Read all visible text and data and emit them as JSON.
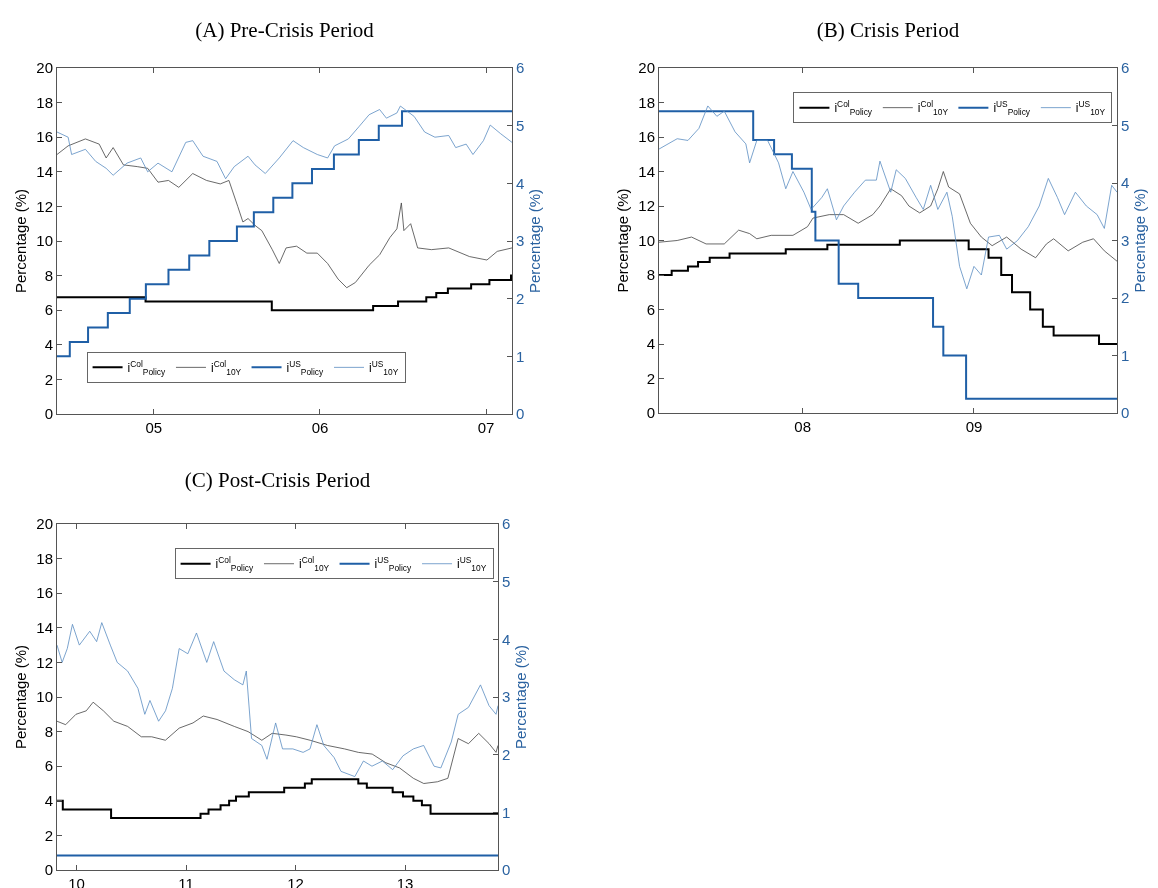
{
  "chart_data": [
    {
      "type": "line",
      "title": "(A) Pre-Crisis Period",
      "ylabel": "Percentage (%)",
      "y2label": "Percentage (%)",
      "legend": "bottom left",
      "grid": false,
      "xlim": [
        2004.417,
        2007.156
      ],
      "xticks": [
        {
          "value": 2005,
          "label": "05"
        },
        {
          "value": 2006,
          "label": "06"
        },
        {
          "value": 2007,
          "label": "07"
        }
      ],
      "ylim": [
        0,
        20
      ],
      "yticks": [
        0,
        2,
        4,
        6,
        8,
        10,
        12,
        14,
        16,
        18,
        20
      ],
      "y2lim": [
        0,
        6
      ],
      "y2ticks": [
        0,
        1,
        2,
        3,
        4,
        5,
        6
      ],
      "series": [
        {
          "name": "i$^{Col}$$_{Policy}$",
          "type": "step",
          "color": "#000000",
          "x": [
            2004.417,
            2004.95,
            2005.71,
            2006.32,
            2006.47,
            2006.64,
            2006.7,
            2006.77,
            2006.91,
            2007.02,
            2007.15,
            2007.156
          ],
          "values": [
            6.75,
            6.5,
            6.0,
            6.25,
            6.5,
            6.75,
            7.0,
            7.25,
            7.5,
            7.75,
            8.0,
            8.0
          ]
        },
        {
          "name": "i$^{Col}$$_{10Y}$",
          "type": "line",
          "color": "#444444",
          "x": [
            2004.417,
            2004.484,
            2004.588,
            2004.671,
            2004.713,
            2004.755,
            2004.817,
            2004.9,
            2004.963,
            2005.025,
            2005.088,
            2005.15,
            2005.234,
            2005.317,
            2005.4,
            2005.452,
            2005.505,
            2005.536,
            2005.567,
            2005.609,
            2005.65,
            2005.713,
            2005.755,
            2005.796,
            2005.859,
            2005.921,
            2005.984,
            2006.046,
            2006.109,
            2006.161,
            2006.213,
            2006.296,
            2006.359,
            2006.421,
            2006.463,
            2006.49,
            2006.505,
            2006.546,
            2006.588,
            2006.671,
            2006.775,
            2006.9,
            2007.005,
            2007.067,
            2007.156
          ],
          "values": [
            15.0,
            15.5,
            15.9,
            15.6,
            14.8,
            15.4,
            14.4,
            14.3,
            14.2,
            13.4,
            13.5,
            13.1,
            13.9,
            13.5,
            13.3,
            13.5,
            12.0,
            11.1,
            11.3,
            10.9,
            10.6,
            9.5,
            8.7,
            9.6,
            9.7,
            9.3,
            9.3,
            8.7,
            7.8,
            7.3,
            7.6,
            8.6,
            9.2,
            10.2,
            10.7,
            12.2,
            10.6,
            11.0,
            9.6,
            9.5,
            9.6,
            9.1,
            8.9,
            9.4,
            9.6
          ]
        },
        {
          "name": "i$^{US}$$_{Policy}$",
          "type": "step",
          "axis": "y2",
          "color": "#1f5fa6",
          "x": [
            2004.417,
            2004.494,
            2004.604,
            2004.723,
            2004.855,
            2004.952,
            2005.088,
            2005.213,
            2005.334,
            2005.5,
            2005.602,
            2005.719,
            2005.834,
            2005.952,
            2006.084,
            2006.234,
            2006.354,
            2006.494,
            2007.156
          ],
          "values": [
            1.0,
            1.25,
            1.5,
            1.75,
            2.0,
            2.25,
            2.5,
            2.75,
            3.0,
            3.25,
            3.5,
            3.75,
            4.0,
            4.25,
            4.5,
            4.75,
            5.0,
            5.25,
            5.25
          ]
        },
        {
          "name": "i$^{US}$$_{10Y}$",
          "type": "line",
          "axis": "y2",
          "color": "#5a8dc2",
          "x": [
            2004.417,
            2004.484,
            2004.505,
            2004.588,
            2004.65,
            2004.713,
            2004.755,
            2004.838,
            2004.921,
            2004.963,
            2005.025,
            2005.109,
            2005.192,
            2005.234,
            2005.296,
            2005.38,
            2005.432,
            2005.484,
            2005.567,
            2005.609,
            2005.671,
            2005.755,
            2005.838,
            2005.9,
            2005.984,
            2006.046,
            2006.088,
            2006.171,
            2006.234,
            2006.296,
            2006.359,
            2006.4,
            2006.463,
            2006.484,
            2006.567,
            2006.63,
            2006.692,
            2006.775,
            2006.817,
            2006.88,
            2006.921,
            2006.984,
            2007.025,
            2007.088,
            2007.156
          ],
          "values": [
            4.89,
            4.8,
            4.5,
            4.59,
            4.38,
            4.26,
            4.14,
            4.35,
            4.44,
            4.2,
            4.35,
            4.2,
            4.71,
            4.74,
            4.47,
            4.38,
            4.08,
            4.29,
            4.47,
            4.32,
            4.17,
            4.44,
            4.74,
            4.62,
            4.5,
            4.44,
            4.65,
            4.77,
            4.98,
            5.19,
            5.28,
            5.13,
            5.22,
            5.34,
            5.16,
            4.89,
            4.8,
            4.83,
            4.62,
            4.68,
            4.5,
            4.74,
            5.01,
            4.86,
            4.71
          ]
        }
      ]
    },
    {
      "type": "line",
      "title": "(B) Crisis Period",
      "ylabel": "Percentage (%)",
      "y2label": "Percentage (%)",
      "legend": "top right",
      "grid": false,
      "xlim": [
        2007.161,
        2009.835
      ],
      "xticks": [
        {
          "value": 2008,
          "label": "08"
        },
        {
          "value": 2009,
          "label": "09"
        }
      ],
      "ylim": [
        0,
        20
      ],
      "yticks": [
        0,
        2,
        4,
        6,
        8,
        10,
        12,
        14,
        16,
        18,
        20
      ],
      "y2lim": [
        0,
        6
      ],
      "y2ticks": [
        0,
        1,
        2,
        3,
        4,
        5,
        6
      ],
      "series": [
        {
          "name": "i$^{Col}$$_{Policy}$",
          "type": "step",
          "color": "#000000",
          "x": [
            2007.161,
            2007.235,
            2007.33,
            2007.389,
            2007.457,
            2007.573,
            2007.901,
            2008.144,
            2008.567,
            2008.969,
            2009.085,
            2009.159,
            2009.222,
            2009.328,
            2009.402,
            2009.465,
            2009.73,
            2009.835
          ],
          "values": [
            8.0,
            8.25,
            8.5,
            8.75,
            9.0,
            9.25,
            9.5,
            9.75,
            10.0,
            9.5,
            9.0,
            8.0,
            7.0,
            6.0,
            5.0,
            4.5,
            4.0,
            4.0
          ]
        },
        {
          "name": "i$^{Col}$$_{10Y}$",
          "type": "line",
          "color": "#444444",
          "x": [
            2007.161,
            2007.267,
            2007.351,
            2007.436,
            2007.542,
            2007.626,
            2007.69,
            2007.732,
            2007.816,
            2007.943,
            2008.028,
            2008.06,
            2008.155,
            2008.239,
            2008.324,
            2008.409,
            2008.451,
            2008.514,
            2008.577,
            2008.62,
            2008.683,
            2008.747,
            2008.789,
            2008.821,
            2008.852,
            2008.916,
            2008.979,
            2009.043,
            2009.106,
            2009.191,
            2009.275,
            2009.36,
            2009.423,
            2009.465,
            2009.55,
            2009.635,
            2009.698,
            2009.761,
            2009.835
          ],
          "values": [
            9.9,
            10.0,
            10.2,
            9.8,
            9.8,
            10.6,
            10.4,
            10.1,
            10.3,
            10.3,
            10.8,
            11.3,
            11.5,
            11.5,
            11.0,
            11.5,
            12.0,
            13.0,
            12.6,
            12.0,
            11.6,
            12.0,
            13.0,
            14.0,
            13.1,
            12.7,
            11.0,
            10.2,
            9.7,
            10.2,
            9.5,
            9.0,
            9.8,
            10.1,
            9.4,
            9.9,
            10.1,
            9.4,
            8.8
          ]
        },
        {
          "name": "i$^{US}$$_{Policy}$",
          "type": "step",
          "axis": "y2",
          "color": "#1f5fa6",
          "x": [
            2007.161,
            2007.711,
            2007.833,
            2007.937,
            2008.053,
            2008.074,
            2008.21,
            2008.324,
            2008.761,
            2008.821,
            2008.954,
            2009.835
          ],
          "values": [
            5.25,
            4.75,
            4.5,
            4.25,
            3.5,
            3.0,
            2.25,
            2.0,
            1.5,
            1.0,
            0.25,
            0.25
          ]
        },
        {
          "name": "i$^{US}$$_{10Y}$",
          "type": "line",
          "axis": "y2",
          "color": "#5a8dc2",
          "x": [
            2007.161,
            2007.214,
            2007.267,
            2007.33,
            2007.394,
            2007.446,
            2007.499,
            2007.542,
            2007.605,
            2007.668,
            2007.69,
            2007.732,
            2007.795,
            2007.859,
            2007.901,
            2007.943,
            2008.007,
            2008.049,
            2008.112,
            2008.144,
            2008.197,
            2008.239,
            2008.303,
            2008.366,
            2008.43,
            2008.451,
            2008.514,
            2008.546,
            2008.599,
            2008.662,
            2008.704,
            2008.747,
            2008.789,
            2008.842,
            2008.873,
            2008.916,
            2008.958,
            2009.0,
            2009.043,
            2009.085,
            2009.148,
            2009.191,
            2009.254,
            2009.317,
            2009.381,
            2009.434,
            2009.487,
            2009.529,
            2009.592,
            2009.656,
            2009.719,
            2009.761,
            2009.804,
            2009.835
          ],
          "values": [
            4.59,
            4.68,
            4.77,
            4.74,
            4.95,
            5.34,
            5.16,
            5.25,
            4.89,
            4.68,
            4.35,
            4.74,
            4.74,
            4.35,
            3.9,
            4.2,
            3.84,
            3.54,
            3.75,
            3.9,
            3.36,
            3.6,
            3.84,
            4.05,
            4.05,
            4.38,
            3.84,
            4.23,
            4.08,
            3.75,
            3.54,
            3.96,
            3.54,
            3.84,
            3.42,
            2.55,
            2.16,
            2.55,
            2.4,
            3.06,
            3.09,
            2.85,
            3.0,
            3.24,
            3.6,
            4.08,
            3.75,
            3.45,
            3.84,
            3.6,
            3.45,
            3.21,
            3.96,
            3.84
          ]
        }
      ]
    },
    {
      "type": "line",
      "title": "(C) Post-Crisis Period",
      "ylabel": "Percentage (%)",
      "y2label": "Percentage (%)",
      "legend": "top right",
      "grid": false,
      "xlim": [
        2009.821,
        2013.849
      ],
      "xticks": [
        {
          "value": 2010,
          "label": "10"
        },
        {
          "value": 2011,
          "label": "11"
        },
        {
          "value": 2012,
          "label": "12"
        },
        {
          "value": 2013,
          "label": "13"
        }
      ],
      "ylim": [
        0,
        20
      ],
      "yticks": [
        0,
        2,
        4,
        6,
        8,
        10,
        12,
        14,
        16,
        18,
        20
      ],
      "y2lim": [
        0,
        6
      ],
      "y2ticks": [
        0,
        1,
        2,
        3,
        4,
        5,
        6
      ],
      "series": [
        {
          "name": "i$^{Col}$$_{Policy}$",
          "type": "step",
          "color": "#000000",
          "x": [
            2009.821,
            2009.874,
            2010.315,
            2011.132,
            2011.205,
            2011.315,
            2011.393,
            2011.456,
            2011.573,
            2011.896,
            2012.085,
            2012.148,
            2012.573,
            2012.651,
            2012.887,
            2012.981,
            2013.076,
            2013.154,
            2013.233,
            2013.849
          ],
          "values": [
            4.0,
            3.5,
            3.0,
            3.25,
            3.5,
            3.75,
            4.0,
            4.25,
            4.5,
            4.75,
            5.0,
            5.25,
            5.0,
            4.75,
            4.5,
            4.25,
            4.0,
            3.75,
            3.25,
            3.25
          ]
        },
        {
          "name": "i$^{Col}$$_{10Y}$",
          "type": "line",
          "color": "#444444",
          "x": [
            2009.821,
            2009.9,
            2009.994,
            2010.088,
            2010.151,
            2010.245,
            2010.34,
            2010.466,
            2010.591,
            2010.686,
            2010.811,
            2010.937,
            2011.063,
            2011.157,
            2011.283,
            2011.44,
            2011.566,
            2011.692,
            2011.786,
            2011.912,
            2012.007,
            2012.133,
            2012.29,
            2012.447,
            2012.573,
            2012.7,
            2012.824,
            2012.95,
            2013.076,
            2013.171,
            2013.296,
            2013.391,
            2013.485,
            2013.579,
            2013.673,
            2013.768,
            2013.831,
            2013.849
          ],
          "values": [
            8.6,
            8.4,
            9.0,
            9.2,
            9.7,
            9.2,
            8.6,
            8.3,
            7.7,
            7.7,
            7.5,
            8.2,
            8.5,
            8.9,
            8.7,
            8.3,
            8.0,
            7.5,
            7.9,
            7.8,
            7.7,
            7.5,
            7.2,
            7.0,
            6.8,
            6.7,
            6.2,
            5.9,
            5.3,
            5.0,
            5.1,
            5.3,
            7.6,
            7.3,
            7.9,
            7.3,
            6.8,
            7.2
          ]
        },
        {
          "name": "i$^{US}$$_{Policy}$",
          "type": "step",
          "axis": "y2",
          "color": "#1f5fa6",
          "x": [
            2009.821,
            2013.849
          ],
          "values": [
            0.25,
            0.25
          ]
        },
        {
          "name": "i$^{US}$$_{10Y}$",
          "type": "line",
          "axis": "y2",
          "color": "#5a8dc2",
          "x": [
            2009.821,
            2009.868,
            2009.915,
            2009.962,
            2010.025,
            2010.12,
            2010.183,
            2010.23,
            2010.308,
            2010.371,
            2010.466,
            2010.56,
            2010.623,
            2010.67,
            2010.749,
            2010.812,
            2010.875,
            2010.937,
            2011.016,
            2011.095,
            2011.189,
            2011.252,
            2011.346,
            2011.44,
            2011.519,
            2011.55,
            2011.598,
            2011.692,
            2011.739,
            2011.818,
            2011.881,
            2011.975,
            2012.069,
            2012.132,
            2012.195,
            2012.258,
            2012.352,
            2012.415,
            2012.541,
            2012.62,
            2012.698,
            2012.793,
            2012.887,
            2012.981,
            2013.076,
            2013.17,
            2013.265,
            2013.327,
            2013.422,
            2013.485,
            2013.579,
            2013.689,
            2013.767,
            2013.831,
            2013.849
          ],
          "values": [
            3.9,
            3.6,
            3.84,
            4.26,
            3.9,
            4.14,
            3.96,
            4.29,
            3.9,
            3.6,
            3.45,
            3.15,
            2.7,
            2.94,
            2.58,
            2.76,
            3.15,
            3.84,
            3.75,
            4.11,
            3.6,
            3.96,
            3.45,
            3.3,
            3.21,
            3.45,
            2.28,
            2.16,
            1.92,
            2.55,
            2.1,
            2.1,
            2.04,
            2.1,
            2.52,
            2.16,
            1.95,
            1.71,
            1.62,
            1.89,
            1.8,
            1.89,
            1.74,
            1.98,
            2.1,
            2.16,
            1.8,
            1.77,
            2.22,
            2.7,
            2.82,
            3.21,
            2.85,
            2.7,
            2.85
          ]
        }
      ]
    }
  ]
}
